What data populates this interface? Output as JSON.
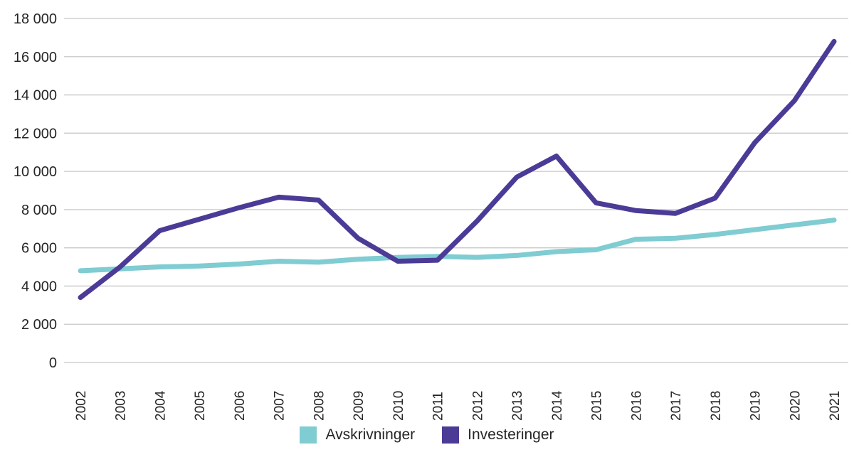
{
  "chart_data": {
    "type": "line",
    "title": "",
    "xlabel": "",
    "ylabel": "",
    "x": [
      "2002",
      "2003",
      "2004",
      "2005",
      "2006",
      "2007",
      "2008",
      "2009",
      "2010",
      "2011",
      "2012",
      "2013",
      "2014",
      "2015",
      "2016",
      "2017",
      "2018",
      "2019",
      "2020",
      "2021"
    ],
    "series": [
      {
        "name": "Avskrivninger",
        "color": "#7FCCD2",
        "values": [
          4800,
          4900,
          5000,
          5050,
          5150,
          5300,
          5250,
          5400,
          5500,
          5550,
          5500,
          5600,
          5800,
          5900,
          6450,
          6500,
          6700,
          6950,
          7200,
          7450
        ]
      },
      {
        "name": "Investeringer",
        "color": "#4B3B97",
        "values": [
          3400,
          5000,
          6900,
          7500,
          8100,
          8650,
          8500,
          6500,
          5300,
          5350,
          7400,
          9700,
          10800,
          8350,
          7950,
          7800,
          8600,
          11500,
          13700,
          16800
        ]
      }
    ],
    "ylim": [
      0,
      18000
    ],
    "ytick_step": 2000,
    "ytick_labels": [
      "0",
      "2 000",
      "4 000",
      "6 000",
      "8 000",
      "10 000",
      "12 000",
      "14 000",
      "16 000",
      "18 000"
    ],
    "grid": true,
    "legend_position": "bottom"
  },
  "colors": {
    "gridline": "#C8C8C8",
    "axis_text": "#252525",
    "background": "#FFFFFF"
  }
}
